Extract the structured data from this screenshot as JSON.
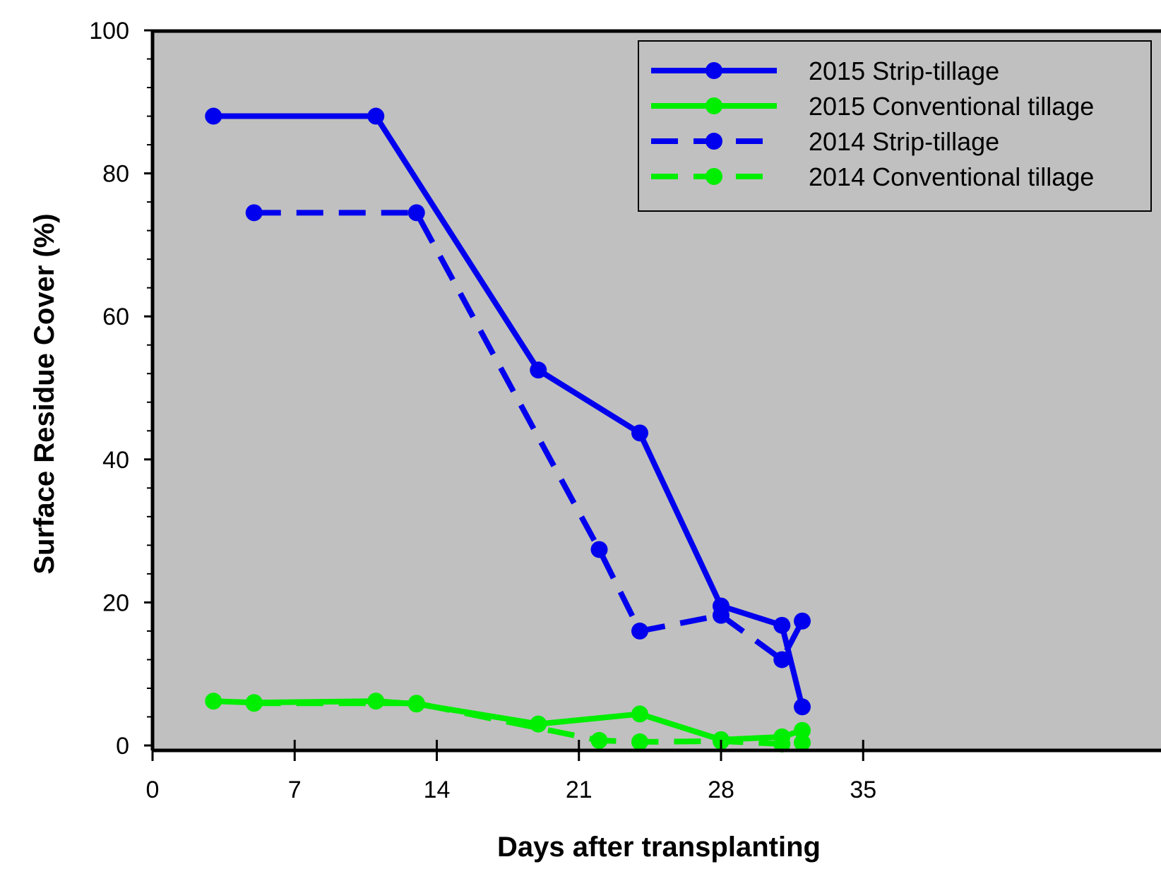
{
  "chart_data": {
    "type": "line",
    "xlabel": "Days after transplanting",
    "ylabel": "Surface Residue Cover (%)",
    "xlim": [
      0,
      35
    ],
    "ylim": [
      0,
      100
    ],
    "xticks": [
      0,
      7,
      14,
      21,
      28,
      35
    ],
    "xtick_labels": [
      "0",
      "7",
      "14",
      "21",
      "28",
      "35"
    ],
    "yticks": [
      0,
      20,
      40,
      60,
      80,
      100
    ],
    "ytick_labels": [
      "0",
      "20",
      "40",
      "60",
      "80",
      "100"
    ],
    "background": "#c0c0c0",
    "grid": false,
    "legend_position": "top-right",
    "series": [
      {
        "name": "2015 Strip-tillage",
        "color": "#0000ee",
        "style": "solid",
        "x": [
          3,
          11,
          19,
          24,
          28,
          31,
          32
        ],
        "y": [
          88,
          88,
          52.5,
          43.7,
          19.5,
          16.8,
          5.4
        ]
      },
      {
        "name": "2015 Conventional tillage",
        "color": "#00ee00",
        "style": "solid",
        "x": [
          3,
          5,
          11,
          13,
          19,
          24,
          28,
          31,
          32
        ],
        "y": [
          6.2,
          6,
          6.2,
          5.8,
          3,
          4.4,
          0.8,
          1.2,
          2.1
        ]
      },
      {
        "name": "2014 Strip-tillage",
        "color": "#0000ee",
        "style": "dashed",
        "x": [
          5,
          13,
          22,
          24,
          28,
          31,
          32
        ],
        "y": [
          74.5,
          74.5,
          27.4,
          16,
          18.2,
          12,
          17.4
        ]
      },
      {
        "name": "2014 Conventional tillage",
        "color": "#00ee00",
        "style": "dashed",
        "x": [
          5,
          13,
          22,
          24,
          28,
          31,
          32
        ],
        "y": [
          5.9,
          5.9,
          0.7,
          0.5,
          0.6,
          0.2,
          0.4
        ]
      }
    ]
  }
}
